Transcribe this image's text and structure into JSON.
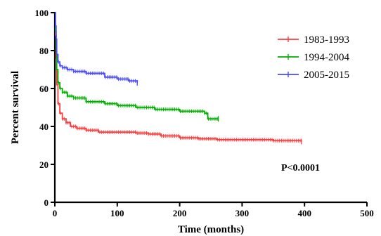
{
  "chart_data": {
    "type": "line",
    "chart_style": "kaplan-meier step survival curves with censor ticks",
    "title": "",
    "xlabel": "Time (months)",
    "ylabel": "Percent survival",
    "xlim": [
      0,
      500
    ],
    "ylim": [
      0,
      100
    ],
    "x_ticks": [
      "0",
      "100",
      "200",
      "300",
      "400",
      "500"
    ],
    "y_ticks": [
      "0",
      "20",
      "40",
      "60",
      "80",
      "100"
    ],
    "grid": false,
    "legend_position": "top-right",
    "annotation": "P<0.0001",
    "series": [
      {
        "name": "1983-1993",
        "color": "#ff3b3b",
        "x": [
          0,
          1,
          2,
          3,
          5,
          8,
          12,
          18,
          25,
          35,
          50,
          70,
          100,
          130,
          150,
          170,
          200,
          230,
          260,
          300,
          350,
          395
        ],
        "y": [
          100,
          88,
          76,
          62,
          52,
          47,
          44,
          42,
          40,
          39,
          38,
          37,
          37,
          36.5,
          36,
          35,
          34,
          33.5,
          33,
          33,
          32.5,
          32
        ]
      },
      {
        "name": "1994-2004",
        "color": "#00b000",
        "x": [
          0,
          1,
          2,
          3,
          5,
          8,
          12,
          20,
          30,
          50,
          80,
          100,
          130,
          160,
          200,
          240,
          245,
          262
        ],
        "y": [
          100,
          90,
          80,
          70,
          63,
          60,
          58,
          56,
          55,
          53,
          52,
          51,
          50,
          49,
          48,
          47,
          44,
          44
        ]
      },
      {
        "name": "2005-2015",
        "color": "#4a4aff",
        "x": [
          0,
          1,
          2,
          3,
          5,
          8,
          12,
          20,
          30,
          50,
          80,
          100,
          118,
          132
        ],
        "y": [
          100,
          93,
          86,
          78,
          74,
          72,
          71,
          70,
          69,
          68,
          66,
          65,
          64,
          63
        ]
      }
    ]
  }
}
